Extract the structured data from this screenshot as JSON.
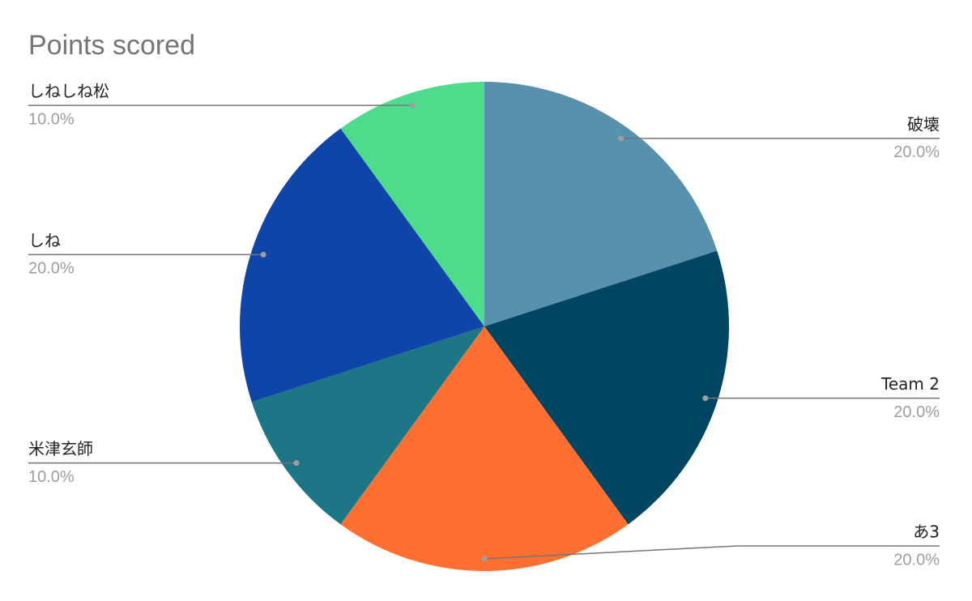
{
  "chart_data": {
    "type": "pie",
    "title": "Points scored",
    "categories": [
      "破壊",
      "Team 2",
      "あ3",
      "米津玄師",
      "しね",
      "しねしね松"
    ],
    "values": [
      20,
      20,
      20,
      10,
      20,
      10
    ],
    "value_labels": [
      "20.0%",
      "20.0%",
      "20.0%",
      "10.0%",
      "20.0%",
      "10.0%"
    ],
    "colors": [
      "#5891ad",
      "#004561",
      "#ff6f31",
      "#1c7685",
      "#0f45a8",
      "#4cdc8b"
    ]
  }
}
